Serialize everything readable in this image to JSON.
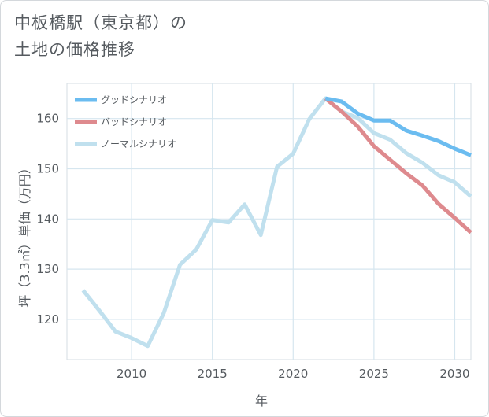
{
  "title": {
    "line1": "中板橋駅（東京都）の",
    "line2": "土地の価格推移"
  },
  "chart_data": {
    "type": "line",
    "xlabel": "年",
    "ylabel": "坪（3.3㎡）単価（万円）",
    "xlim": [
      2006,
      2031
    ],
    "ylim": [
      112,
      167
    ],
    "x_ticks": [
      2010,
      2015,
      2020,
      2025,
      2030
    ],
    "y_ticks": [
      120,
      130,
      140,
      150,
      160
    ],
    "grid": true,
    "legend_position": "top-left",
    "series": [
      {
        "name": "グッドシナリオ",
        "color": "#6bbcf0",
        "x": [
          2022,
          2023,
          2024,
          2025,
          2026,
          2027,
          2028,
          2029,
          2030,
          2031
        ],
        "y": [
          164.0,
          163.4,
          161.0,
          159.6,
          159.6,
          157.6,
          156.6,
          155.5,
          154.0,
          152.7
        ]
      },
      {
        "name": "バッドシナリオ",
        "color": "#de8a8e",
        "x": [
          2022,
          2023,
          2024,
          2025,
          2026,
          2027,
          2028,
          2029,
          2030,
          2031
        ],
        "y": [
          164.0,
          161.4,
          158.4,
          154.5,
          151.8,
          149.1,
          146.7,
          143.0,
          140.2,
          137.3
        ]
      },
      {
        "name": "ノーマルシナリオ",
        "color": "#c0e0ee",
        "x": [
          2007,
          2008,
          2009,
          2010,
          2011,
          2012,
          2013,
          2014,
          2015,
          2016,
          2017,
          2018,
          2019,
          2020,
          2021,
          2022,
          2023,
          2024,
          2025,
          2026,
          2027,
          2028,
          2029,
          2030,
          2031
        ],
        "y": [
          125.8,
          121.8,
          117.6,
          116.3,
          114.7,
          121.3,
          130.9,
          133.9,
          139.8,
          139.3,
          142.9,
          136.8,
          150.4,
          153.0,
          159.9,
          164.0,
          161.4,
          160.1,
          157.1,
          155.8,
          153.1,
          151.2,
          148.7,
          147.3,
          144.5
        ]
      }
    ]
  }
}
